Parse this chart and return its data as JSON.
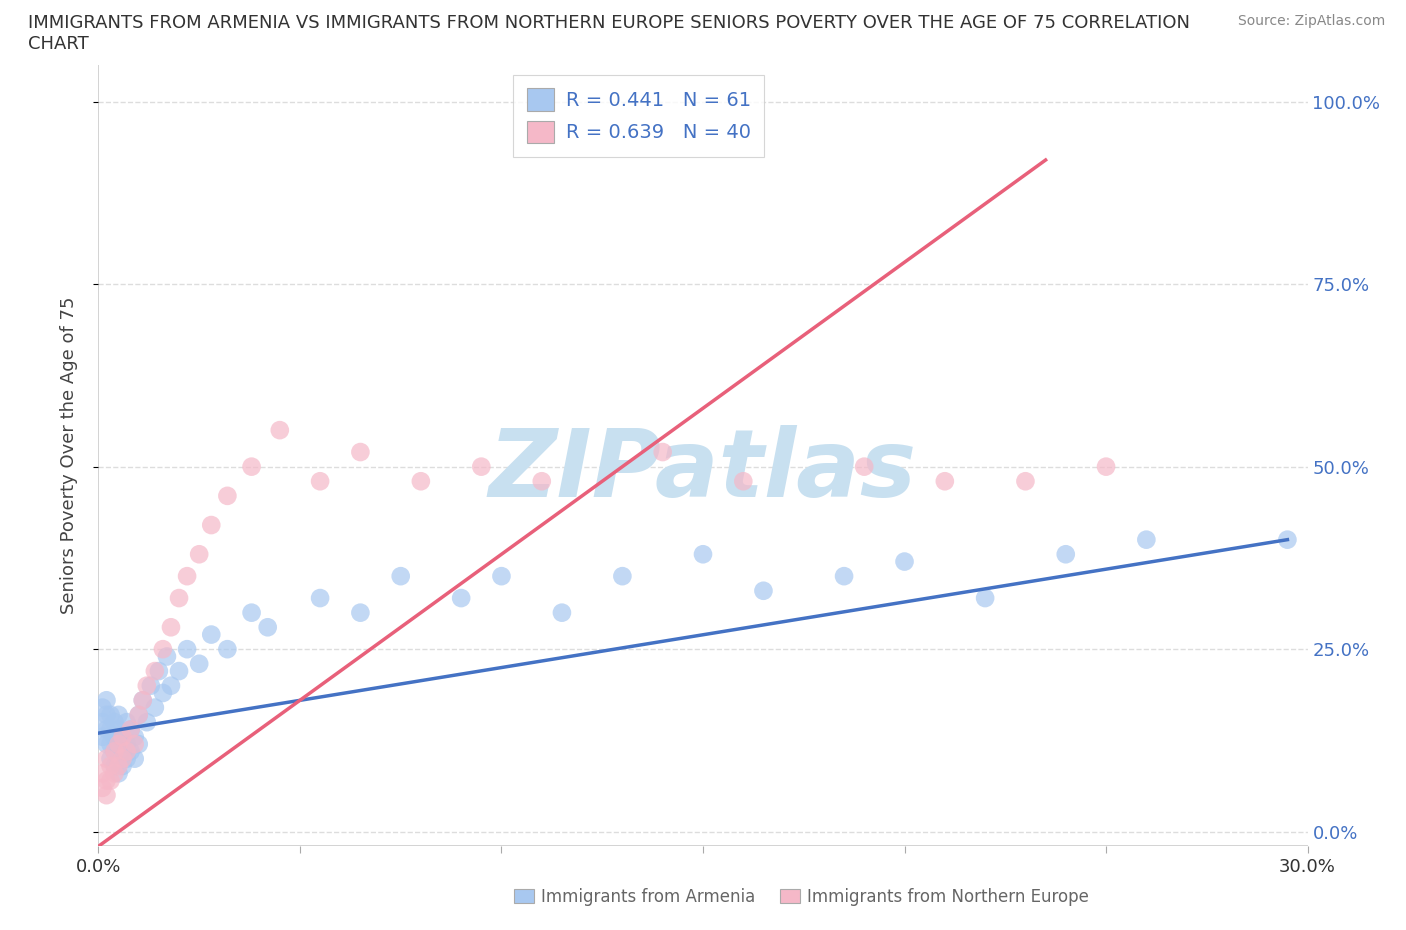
{
  "title_line1": "IMMIGRANTS FROM ARMENIA VS IMMIGRANTS FROM NORTHERN EUROPE SENIORS POVERTY OVER THE AGE OF 75 CORRELATION",
  "title_line2": "CHART",
  "source": "Source: ZipAtlas.com",
  "ylabel": "Seniors Poverty Over the Age of 75",
  "xlabel_armenia": "Immigrants from Armenia",
  "xlabel_northern": "Immigrants from Northern Europe",
  "xlim": [
    0.0,
    0.3
  ],
  "ylim": [
    -0.02,
    1.05
  ],
  "yticks": [
    0.0,
    0.25,
    0.5,
    0.75,
    1.0
  ],
  "ytick_labels": [
    "0.0%",
    "25.0%",
    "50.0%",
    "75.0%",
    "100.0%"
  ],
  "xticks": [
    0.0,
    0.05,
    0.1,
    0.15,
    0.2,
    0.25,
    0.3
  ],
  "xtick_labels": [
    "0.0%",
    "",
    "",
    "",
    "",
    "",
    "30.0%"
  ],
  "R_armenia": 0.441,
  "N_armenia": 61,
  "R_northern": 0.639,
  "N_northern": 40,
  "color_armenia": "#A8C8F0",
  "color_northern": "#F5B8C8",
  "trendline_armenia": "#4472C4",
  "trendline_northern": "#E8607A",
  "watermark": "ZIPatlas",
  "watermark_color": "#C8E0F0",
  "background_color": "#FFFFFF",
  "armenia_x": [
    0.001,
    0.001,
    0.001,
    0.002,
    0.002,
    0.002,
    0.002,
    0.003,
    0.003,
    0.003,
    0.003,
    0.004,
    0.004,
    0.004,
    0.004,
    0.005,
    0.005,
    0.005,
    0.005,
    0.006,
    0.006,
    0.006,
    0.007,
    0.007,
    0.007,
    0.008,
    0.008,
    0.009,
    0.009,
    0.01,
    0.01,
    0.011,
    0.012,
    0.013,
    0.014,
    0.015,
    0.016,
    0.017,
    0.018,
    0.02,
    0.022,
    0.025,
    0.028,
    0.032,
    0.038,
    0.042,
    0.055,
    0.065,
    0.075,
    0.09,
    0.1,
    0.115,
    0.13,
    0.15,
    0.165,
    0.185,
    0.2,
    0.22,
    0.24,
    0.26,
    0.295
  ],
  "armenia_y": [
    0.17,
    0.15,
    0.13,
    0.18,
    0.16,
    0.14,
    0.12,
    0.16,
    0.14,
    0.12,
    0.1,
    0.15,
    0.13,
    0.11,
    0.09,
    0.14,
    0.12,
    0.16,
    0.08,
    0.13,
    0.11,
    0.09,
    0.15,
    0.12,
    0.1,
    0.14,
    0.11,
    0.13,
    0.1,
    0.16,
    0.12,
    0.18,
    0.15,
    0.2,
    0.17,
    0.22,
    0.19,
    0.24,
    0.2,
    0.22,
    0.25,
    0.23,
    0.27,
    0.25,
    0.3,
    0.28,
    0.32,
    0.3,
    0.35,
    0.32,
    0.35,
    0.3,
    0.35,
    0.38,
    0.33,
    0.35,
    0.37,
    0.32,
    0.38,
    0.4,
    0.4
  ],
  "northern_x": [
    0.001,
    0.001,
    0.002,
    0.002,
    0.002,
    0.003,
    0.003,
    0.004,
    0.004,
    0.005,
    0.005,
    0.006,
    0.006,
    0.007,
    0.008,
    0.009,
    0.01,
    0.011,
    0.012,
    0.014,
    0.016,
    0.018,
    0.02,
    0.022,
    0.025,
    0.028,
    0.032,
    0.038,
    0.045,
    0.055,
    0.065,
    0.08,
    0.095,
    0.11,
    0.14,
    0.16,
    0.19,
    0.21,
    0.23,
    0.25
  ],
  "northern_y": [
    0.08,
    0.06,
    0.1,
    0.07,
    0.05,
    0.09,
    0.07,
    0.11,
    0.08,
    0.12,
    0.09,
    0.1,
    0.13,
    0.11,
    0.14,
    0.12,
    0.16,
    0.18,
    0.2,
    0.22,
    0.25,
    0.28,
    0.32,
    0.35,
    0.38,
    0.42,
    0.46,
    0.5,
    0.55,
    0.48,
    0.52,
    0.48,
    0.5,
    0.48,
    0.52,
    0.48,
    0.5,
    0.48,
    0.48,
    0.5
  ],
  "legend_text_color": "#4472C4",
  "grid_color": "#DDDDDD",
  "armenia_trendline_pts": [
    [
      0.0,
      0.135
    ],
    [
      0.295,
      0.4
    ]
  ],
  "northern_trendline_pts": [
    [
      0.0,
      -0.02
    ],
    [
      0.235,
      0.92
    ]
  ]
}
